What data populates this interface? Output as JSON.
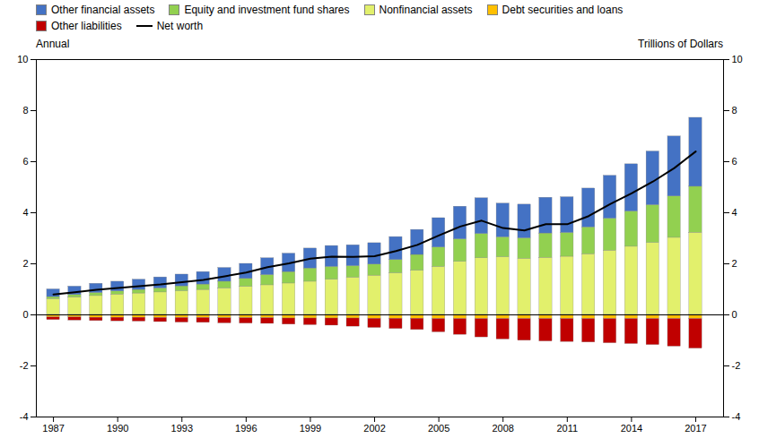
{
  "chart_data": {
    "type": "bar",
    "stacked": true,
    "legend": "upper left",
    "xlabel": "Annual",
    "ylabel": "Trillions of Dollars",
    "x": [
      1987,
      1988,
      1989,
      1990,
      1991,
      1992,
      1993,
      1994,
      1995,
      1996,
      1997,
      1998,
      1999,
      2000,
      2001,
      2002,
      2003,
      2004,
      2005,
      2006,
      2007,
      2008,
      2009,
      2010,
      2011,
      2012,
      2013,
      2014,
      2015,
      2016,
      2017
    ],
    "series": [
      {
        "name": "Other financial assets",
        "type": "bar",
        "color": "#4472C4",
        "values": [
          0.3,
          0.33,
          0.36,
          0.38,
          0.4,
          0.43,
          0.46,
          0.49,
          0.54,
          0.59,
          0.66,
          0.72,
          0.78,
          0.82,
          0.82,
          0.84,
          0.9,
          0.98,
          1.15,
          1.28,
          1.4,
          1.32,
          1.32,
          1.4,
          1.4,
          1.52,
          1.68,
          1.85,
          2.1,
          2.35,
          2.7
        ]
      },
      {
        "name": "Equity and investment fund shares",
        "type": "bar",
        "color": "#92D050",
        "values": [
          0.08,
          0.1,
          0.12,
          0.12,
          0.14,
          0.16,
          0.19,
          0.21,
          0.26,
          0.31,
          0.4,
          0.45,
          0.52,
          0.5,
          0.45,
          0.43,
          0.52,
          0.62,
          0.76,
          0.88,
          0.95,
          0.78,
          0.8,
          0.95,
          0.93,
          1.05,
          1.25,
          1.38,
          1.48,
          1.62,
          1.8
        ]
      },
      {
        "name": "Nonfinancial assets",
        "type": "bar",
        "color": "#E2F06C",
        "values": [
          0.62,
          0.68,
          0.74,
          0.8,
          0.84,
          0.88,
          0.93,
          0.98,
          1.04,
          1.1,
          1.16,
          1.23,
          1.3,
          1.38,
          1.46,
          1.54,
          1.63,
          1.73,
          1.88,
          2.08,
          2.22,
          2.26,
          2.2,
          2.24,
          2.28,
          2.38,
          2.52,
          2.67,
          2.82,
          3.02,
          3.22
        ]
      },
      {
        "name": "Debt securities and loans",
        "type": "bar",
        "color": "#FFC000",
        "values": [
          -0.1,
          -0.1,
          -0.11,
          -0.11,
          -0.11,
          -0.12,
          -0.12,
          -0.12,
          -0.13,
          -0.13,
          -0.13,
          -0.14,
          -0.14,
          -0.14,
          -0.14,
          -0.15,
          -0.15,
          -0.15,
          -0.16,
          -0.16,
          -0.16,
          -0.16,
          -0.16,
          -0.16,
          -0.16,
          -0.16,
          -0.16,
          -0.16,
          -0.16,
          -0.16,
          -0.16
        ]
      },
      {
        "name": "Other liabilities",
        "type": "bar",
        "color": "#C00000",
        "values": [
          -0.1,
          -0.12,
          -0.13,
          -0.14,
          -0.15,
          -0.16,
          -0.18,
          -0.19,
          -0.2,
          -0.21,
          -0.22,
          -0.24,
          -0.26,
          -0.28,
          -0.32,
          -0.36,
          -0.4,
          -0.44,
          -0.52,
          -0.62,
          -0.72,
          -0.8,
          -0.85,
          -0.88,
          -0.9,
          -0.92,
          -0.95,
          -0.98,
          -1.02,
          -1.08,
          -1.16
        ]
      },
      {
        "name": "Net worth",
        "type": "line",
        "color": "#000000",
        "values": [
          0.8,
          0.89,
          0.98,
          1.05,
          1.12,
          1.19,
          1.28,
          1.37,
          1.51,
          1.66,
          1.87,
          2.02,
          2.2,
          2.28,
          2.27,
          2.3,
          2.5,
          2.74,
          3.11,
          3.46,
          3.69,
          3.4,
          3.31,
          3.55,
          3.55,
          3.87,
          4.34,
          4.76,
          5.22,
          5.75,
          6.4
        ]
      }
    ],
    "xlim": [
      1986.2,
      2018.3
    ],
    "xticks": [
      1987,
      1990,
      1993,
      1996,
      1999,
      2002,
      2005,
      2008,
      2011,
      2014,
      2017
    ],
    "ylim": [
      -4,
      10
    ],
    "yticks": [
      -4,
      -2,
      0,
      2,
      4,
      6,
      8,
      10
    ]
  }
}
